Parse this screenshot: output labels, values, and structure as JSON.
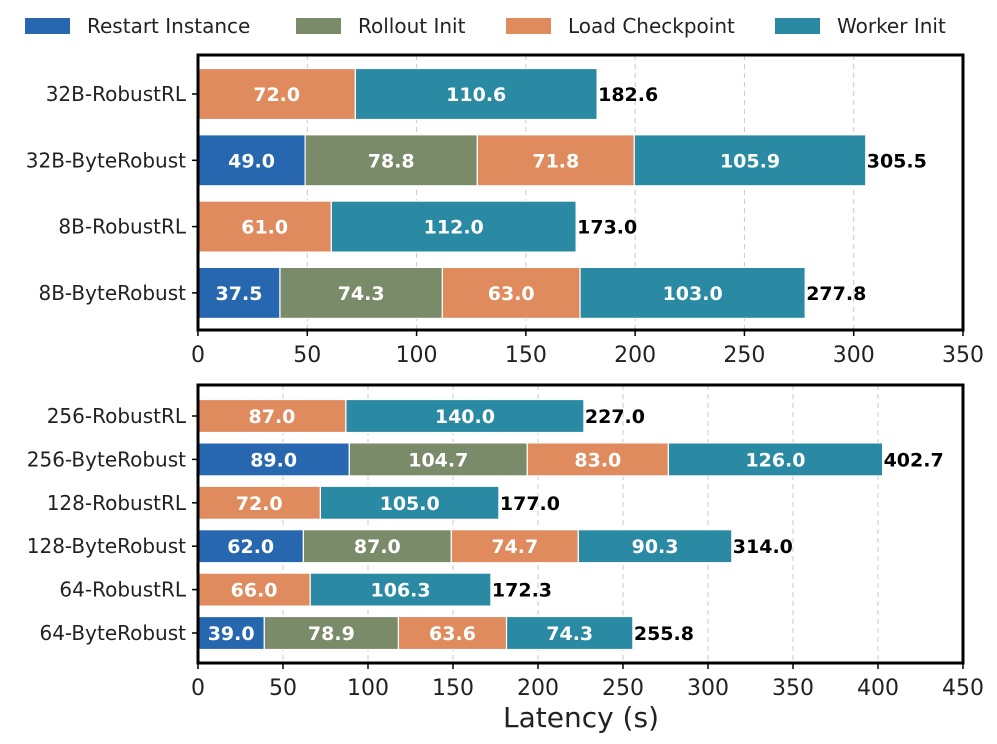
{
  "legend": [
    {
      "name": "Restart Instance",
      "color": "#2767b0"
    },
    {
      "name": "Rollout Init",
      "color": "#7a8b6a"
    },
    {
      "name": "Load Checkpoint",
      "color": "#e08b5d"
    },
    {
      "name": "Worker Init",
      "color": "#2a8aa3"
    }
  ],
  "xlabel": "Latency (s)",
  "chart_data": [
    {
      "type": "bar",
      "orientation": "horizontal",
      "stacked": true,
      "xlim": [
        0,
        350
      ],
      "xticks": [
        0,
        50,
        100,
        150,
        200,
        250,
        300,
        350
      ],
      "categories": [
        "32B-RobustRL",
        "32B-ByteRobust",
        "8B-RobustRL",
        "8B-ByteRobust"
      ],
      "series": [
        {
          "name": "Restart Instance",
          "values": [
            0,
            49.0,
            0,
            37.5
          ],
          "labels": [
            "",
            "49.0",
            "",
            "37.5"
          ]
        },
        {
          "name": "Rollout Init",
          "values": [
            0,
            78.8,
            0,
            74.3
          ],
          "labels": [
            "",
            "78.8",
            "",
            "74.3"
          ]
        },
        {
          "name": "Load Checkpoint",
          "values": [
            72.0,
            71.8,
            61.0,
            63.0
          ],
          "labels": [
            "72.0",
            "71.8",
            "61.0",
            "63.0"
          ]
        },
        {
          "name": "Worker Init",
          "values": [
            110.6,
            105.9,
            112.0,
            103.0
          ],
          "labels": [
            "110.6",
            "105.9",
            "112.0",
            "103.0"
          ]
        }
      ],
      "totals": [
        182.6,
        305.5,
        173.0,
        277.8
      ],
      "total_labels": [
        "182.6",
        "305.5",
        "173.0",
        "277.8"
      ],
      "grid": "x, dashed"
    },
    {
      "type": "bar",
      "orientation": "horizontal",
      "stacked": true,
      "xlim": [
        0,
        450
      ],
      "xticks": [
        0,
        50,
        100,
        150,
        200,
        250,
        300,
        350,
        400,
        450
      ],
      "categories": [
        "256-RobustRL",
        "256-ByteRobust",
        "128-RobustRL",
        "128-ByteRobust",
        "64-RobustRL",
        "64-ByteRobust"
      ],
      "series": [
        {
          "name": "Restart Instance",
          "values": [
            0,
            89.0,
            0,
            62.0,
            0,
            39.0
          ],
          "labels": [
            "",
            "89.0",
            "",
            "62.0",
            "",
            "39.0"
          ]
        },
        {
          "name": "Rollout Init",
          "values": [
            0,
            104.7,
            0,
            87.0,
            0,
            78.9
          ],
          "labels": [
            "",
            "104.7",
            "",
            "87.0",
            "",
            "78.9"
          ]
        },
        {
          "name": "Load Checkpoint",
          "values": [
            87.0,
            83.0,
            72.0,
            74.7,
            66.0,
            63.6
          ],
          "labels": [
            "87.0",
            "83.0",
            "72.0",
            "74.7",
            "66.0",
            "63.6"
          ]
        },
        {
          "name": "Worker Init",
          "values": [
            140.0,
            126.0,
            105.0,
            90.3,
            106.3,
            74.3
          ],
          "labels": [
            "140.0",
            "126.0",
            "105.0",
            "90.3",
            "106.3",
            "74.3"
          ]
        }
      ],
      "totals": [
        227.0,
        402.7,
        177.0,
        314.0,
        172.3,
        255.8
      ],
      "total_labels": [
        "227.0",
        "402.7",
        "177.0",
        "314.0",
        "172.3",
        "255.8"
      ],
      "grid": "x, dashed"
    }
  ]
}
